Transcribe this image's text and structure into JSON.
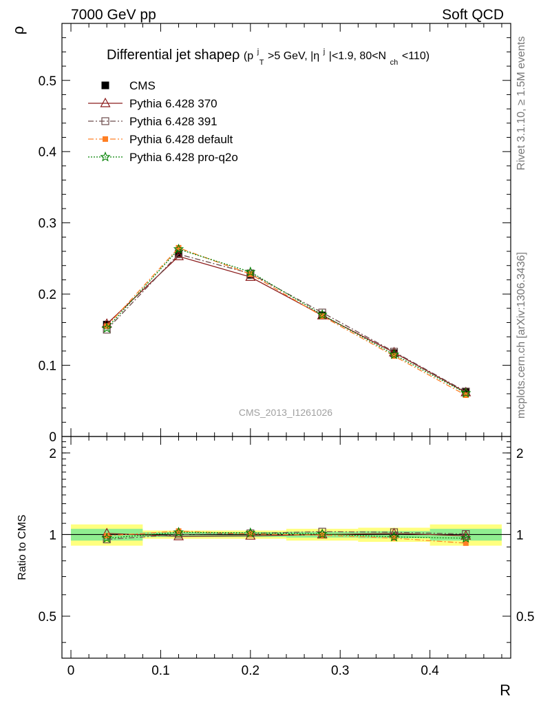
{
  "header": {
    "left": "7000 GeV pp",
    "right": "Soft QCD"
  },
  "side_labels": {
    "rivet": "Rivet 3.1.10, ≥ 1.5M events",
    "mcplots": "mcplots.cern.ch [arXiv:1306.3436]"
  },
  "watermark": "CMS_2013_I1261026",
  "colors": {
    "cms": "#000000",
    "p370": "#8b1a1a",
    "p391": "#6b4a4a",
    "pdefault": "#ff7f24",
    "pq2o": "#008000",
    "band_inner": "#90ee90",
    "band_outer": "#ffff7f"
  },
  "chart_data": [
    {
      "type": "line",
      "title": "Differential jet shapeρ",
      "title_suffix": "(p",
      "title_parts": {
        "pt_sup": "j",
        "pt_sub": "T",
        "after_pt": ">5 GeV, |η",
        "eta_sup": "j",
        "after_eta": "|<1.9, 80<N",
        "nch_sub": "ch",
        "end": "<110)"
      },
      "xlabel": "R",
      "ylabel": "ρ",
      "xlim": [
        -0.01,
        0.49
      ],
      "ylim": [
        0,
        0.58
      ],
      "yticks": [
        0,
        0.1,
        0.2,
        0.3,
        0.4,
        0.5
      ],
      "ytick_labels": [
        "0",
        "0.1",
        "0.2",
        "0.3",
        "0.4",
        "0.5"
      ],
      "legend_position": "top-left",
      "x": [
        0.04,
        0.12,
        0.2,
        0.28,
        0.36,
        0.44
      ],
      "series": [
        {
          "name": "CMS",
          "values": [
            0.157,
            0.257,
            0.227,
            0.17,
            0.117,
            0.063
          ],
          "marker": "square-filled",
          "style": "none"
        },
        {
          "name": "Pythia 6.428 370",
          "values": [
            0.158,
            0.253,
            0.224,
            0.17,
            0.118,
            0.062
          ],
          "marker": "triangle-open",
          "style": "solid"
        },
        {
          "name": "Pythia 6.428 391",
          "values": [
            0.15,
            0.256,
            0.229,
            0.174,
            0.119,
            0.063
          ],
          "marker": "square-open",
          "style": "dashdot"
        },
        {
          "name": "Pythia 6.428 default",
          "values": [
            0.155,
            0.265,
            0.228,
            0.169,
            0.113,
            0.058
          ],
          "marker": "square-filled-small",
          "style": "dashdot"
        },
        {
          "name": "Pythia 6.428 pro-q2o",
          "values": [
            0.152,
            0.263,
            0.231,
            0.171,
            0.115,
            0.061
          ],
          "marker": "star",
          "style": "dotted"
        }
      ]
    },
    {
      "type": "line",
      "xlabel": "R",
      "ylabel": "Ratio to CMS",
      "xlim": [
        -0.01,
        0.49
      ],
      "ylim": [
        0.35,
        2.3
      ],
      "yticks": [
        0.5,
        1,
        2
      ],
      "ytick_labels": [
        "0.5",
        "1",
        "2"
      ],
      "xticks": [
        0,
        0.1,
        0.2,
        0.3,
        0.4
      ],
      "xtick_labels": [
        "0",
        "0.1",
        "0.2",
        "0.3",
        "0.4"
      ],
      "x": [
        0.04,
        0.12,
        0.2,
        0.28,
        0.36,
        0.44
      ],
      "x_bins": [
        [
          0.0,
          0.08
        ],
        [
          0.08,
          0.16
        ],
        [
          0.16,
          0.24
        ],
        [
          0.24,
          0.32
        ],
        [
          0.32,
          0.4
        ],
        [
          0.4,
          0.48
        ]
      ],
      "band_inner": [
        0.05,
        0.02,
        0.02,
        0.025,
        0.03,
        0.05
      ],
      "band_outer": [
        0.09,
        0.035,
        0.035,
        0.05,
        0.06,
        0.09
      ],
      "series": [
        {
          "name": "Pythia 6.428 370",
          "values": [
            1.01,
            0.985,
            0.99,
            1.0,
            1.01,
            0.99
          ]
        },
        {
          "name": "Pythia 6.428 391",
          "values": [
            0.96,
            1.0,
            1.01,
            1.025,
            1.02,
            1.005
          ]
        },
        {
          "name": "Pythia 6.428 default",
          "values": [
            0.99,
            1.03,
            1.005,
            0.995,
            0.97,
            0.93
          ]
        },
        {
          "name": "Pythia 6.428 pro-q2o",
          "values": [
            0.97,
            1.02,
            1.015,
            1.005,
            0.98,
            0.97
          ]
        }
      ]
    }
  ]
}
